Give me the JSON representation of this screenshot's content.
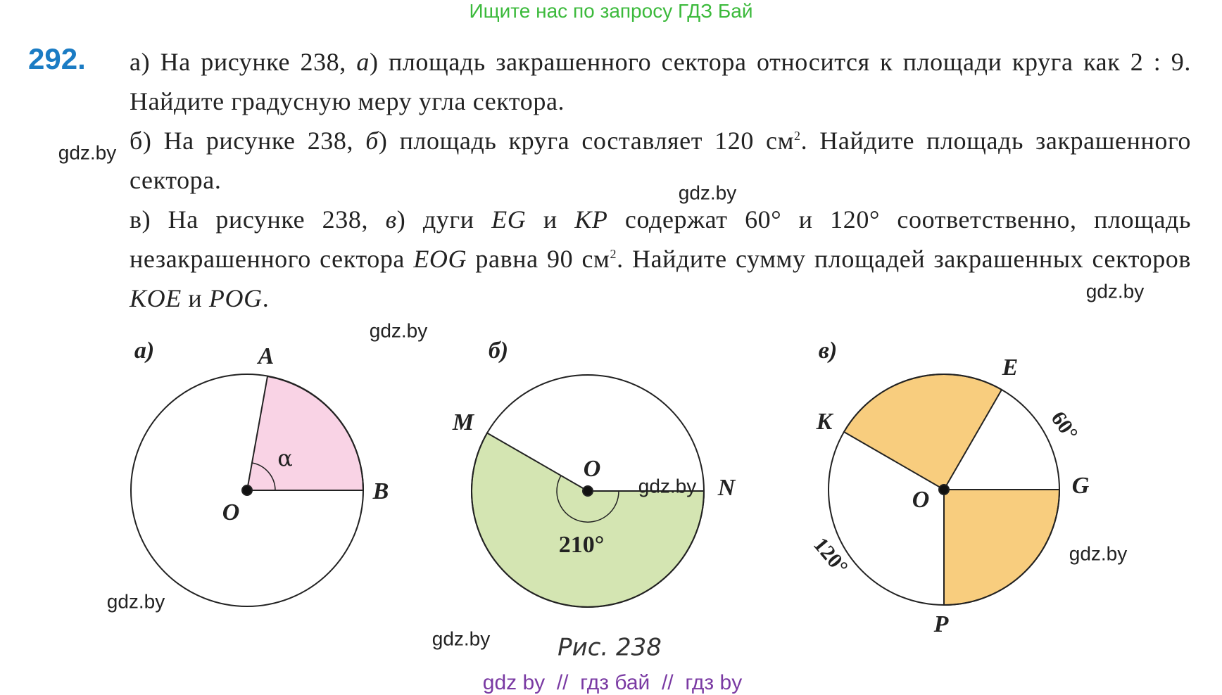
{
  "header": "Ищите нас по запросу ГДЗ Бай",
  "problem": {
    "number": "292.",
    "parts": [
      [
        "а) На рисунке 238, ",
        "а",
        ") площадь закрашенного сектора относится к площади круга как 2 : 9. Найдите градусную меру угла сектора."
      ],
      [
        "б) На рисунке 238, ",
        "б",
        ") площадь круга составляет 120 см",
        "2",
        ". Найдите площадь закрашенного сектора."
      ],
      [
        "в) На рисунке 238, ",
        "в",
        ") дуги ",
        "EG",
        " и ",
        "KP",
        " содержат 60° и 120° соответственно, площадь незакрашенного сектора ",
        "EOG",
        " равна 90 см",
        "2",
        ". Найдите сумму площадей закрашенных секторов ",
        "KOE",
        " и ",
        "POG",
        "."
      ]
    ]
  },
  "figures": [
    {
      "label": "а)",
      "points": [
        "A",
        "B",
        "O"
      ],
      "angle": "α"
    },
    {
      "label": "б)",
      "points": [
        "M",
        "O",
        "N"
      ],
      "angle": "210°"
    },
    {
      "label": "в)",
      "points": [
        "E",
        "K",
        "G",
        "O",
        "P"
      ],
      "arcs": [
        "60°",
        "120°"
      ]
    }
  ],
  "caption": "Рис. 238",
  "watermarks": [
    "gdz.by",
    "gdz.by",
    "gdz.by",
    "gdz.by",
    "gdz.by",
    "gdz.by",
    "gdz.by",
    "gdz.by"
  ],
  "footer": "gdz by  //  гдз бай  //  гдз by"
}
